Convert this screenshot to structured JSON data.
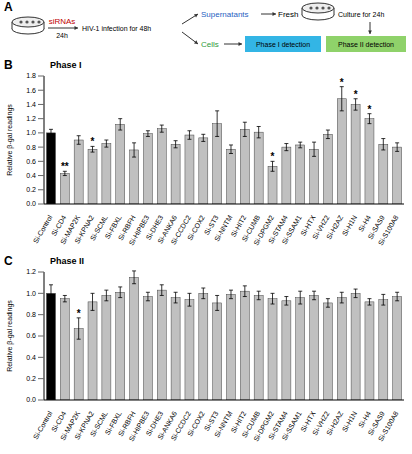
{
  "diagram": {
    "panel": "A",
    "texts": {
      "sirna": "siRNAs",
      "sirna_time": "24h",
      "infection": "HIV-1 infection for 48h",
      "supernatants": "Supernatants",
      "fresh": "Fresh",
      "culture": "Culture for 24h",
      "cells": "Cells",
      "phase1": "Phase I detection",
      "phase2": "Phase II detection"
    }
  },
  "chart_data": [
    {
      "type": "bar",
      "panel": "B",
      "title": "Phase I",
      "y_label": "Relative β-gal readings",
      "categories": [
        "Si-Control",
        "Si-CD4",
        "Si-MAP2K",
        "Si-KPNA2",
        "Si-SCML",
        "Si-FBXL",
        "Si-RBFH",
        "Si-HIPBE3",
        "Si-DHE3",
        "Si-ANKA6",
        "Si-CCDC2",
        "Si-COX2",
        "Si-ST3",
        "Si-NNTM",
        "Si-HIT2",
        "Si-CUMB",
        "Si-DPGM2",
        "Si-STAM4",
        "Si-SSAM1",
        "Si-HTX",
        "Si-VHZ2",
        "Si-H2AZ",
        "Si-H1N",
        "Si-H4",
        "Si-SAS9",
        "Si-S100A8"
      ],
      "values": [
        1.0,
        0.43,
        0.9,
        0.77,
        0.85,
        1.12,
        0.76,
        0.99,
        1.06,
        0.84,
        0.97,
        0.93,
        1.13,
        0.77,
        1.05,
        1.01,
        0.53,
        0.8,
        0.83,
        0.77,
        0.98,
        1.48,
        1.4,
        1.2,
        0.84,
        0.8
      ],
      "errors": [
        0.05,
        0.03,
        0.06,
        0.04,
        0.05,
        0.08,
        0.1,
        0.04,
        0.05,
        0.05,
        0.06,
        0.05,
        0.18,
        0.06,
        0.1,
        0.08,
        0.07,
        0.05,
        0.04,
        0.1,
        0.06,
        0.17,
        0.08,
        0.07,
        0.08,
        0.06
      ],
      "significance": [
        null,
        "**",
        null,
        "*",
        null,
        null,
        null,
        null,
        null,
        null,
        null,
        null,
        null,
        null,
        null,
        null,
        "*",
        null,
        null,
        null,
        null,
        "*",
        "*",
        "*",
        null,
        null
      ],
      "colors": [
        "#000000",
        "#c0c0c0",
        "#c0c0c0",
        "#c0c0c0",
        "#c0c0c0",
        "#c0c0c0",
        "#c0c0c0",
        "#c0c0c0",
        "#c0c0c0",
        "#c0c0c0",
        "#c0c0c0",
        "#c0c0c0",
        "#c0c0c0",
        "#c0c0c0",
        "#c0c0c0",
        "#c0c0c0",
        "#c0c0c0",
        "#c0c0c0",
        "#c0c0c0",
        "#c0c0c0",
        "#c0c0c0",
        "#c0c0c0",
        "#c0c0c0",
        "#c0c0c0",
        "#c0c0c0",
        "#c0c0c0"
      ],
      "ylim": [
        0,
        1.8
      ],
      "yticks": [
        {
          "value": 0,
          "label": "0.0"
        },
        0.2,
        0.4,
        0.6,
        0.8,
        {
          "value": 1,
          "label": "1.0"
        },
        1.2,
        1.4,
        1.6,
        1.8
      ]
    },
    {
      "type": "bar",
      "panel": "C",
      "title": "Phase II",
      "y_label": "Relative β-gal readings",
      "categories": [
        "Si-Control",
        "Si-CD4",
        "Si-MAP2K",
        "Si-KPNA2",
        "Si-SCML",
        "Si-FBXL",
        "Si-RBFH",
        "Si-HIPBE3",
        "Si-DHE3",
        "Si-ANKA6",
        "Si-CCDC2",
        "Si-COX2",
        "Si-ST3",
        "Si-NNTM",
        "Si-HIT2",
        "Si-CUMB",
        "Si-DPGM2",
        "Si-STAM4",
        "Si-SSAM1",
        "Si-HTX",
        "Si-VHZ2",
        "Si-H2AZ",
        "Si-H1N",
        "Si-H4",
        "Si-SAS9",
        "Si-S100A8"
      ],
      "values": [
        1.0,
        0.95,
        0.67,
        0.92,
        0.98,
        1.01,
        1.15,
        0.97,
        1.03,
        0.96,
        0.94,
        1.0,
        0.91,
        0.99,
        1.02,
        0.98,
        0.95,
        0.93,
        0.96,
        0.98,
        0.91,
        0.96,
        1.0,
        0.92,
        0.94,
        0.97
      ],
      "errors": [
        0.08,
        0.03,
        0.1,
        0.08,
        0.05,
        0.05,
        0.06,
        0.04,
        0.05,
        0.05,
        0.06,
        0.05,
        0.07,
        0.04,
        0.05,
        0.04,
        0.05,
        0.04,
        0.06,
        0.04,
        0.04,
        0.05,
        0.04,
        0.03,
        0.05,
        0.04
      ],
      "significance": [
        null,
        null,
        "*",
        null,
        null,
        null,
        null,
        null,
        null,
        null,
        null,
        null,
        null,
        null,
        null,
        null,
        null,
        null,
        null,
        null,
        null,
        null,
        null,
        null,
        null,
        null
      ],
      "colors": [
        "#000000",
        "#c0c0c0",
        "#c0c0c0",
        "#c0c0c0",
        "#c0c0c0",
        "#c0c0c0",
        "#c0c0c0",
        "#c0c0c0",
        "#c0c0c0",
        "#c0c0c0",
        "#c0c0c0",
        "#c0c0c0",
        "#c0c0c0",
        "#c0c0c0",
        "#c0c0c0",
        "#c0c0c0",
        "#c0c0c0",
        "#c0c0c0",
        "#c0c0c0",
        "#c0c0c0",
        "#c0c0c0",
        "#c0c0c0",
        "#c0c0c0",
        "#c0c0c0",
        "#c0c0c0",
        "#c0c0c0"
      ],
      "ylim": [
        0,
        1.2
      ],
      "yticks": [
        {
          "value": 0,
          "label": "0.0"
        },
        0.2,
        0.4,
        0.6,
        0.8,
        {
          "value": 1,
          "label": "1.0"
        },
        1.2
      ]
    }
  ]
}
